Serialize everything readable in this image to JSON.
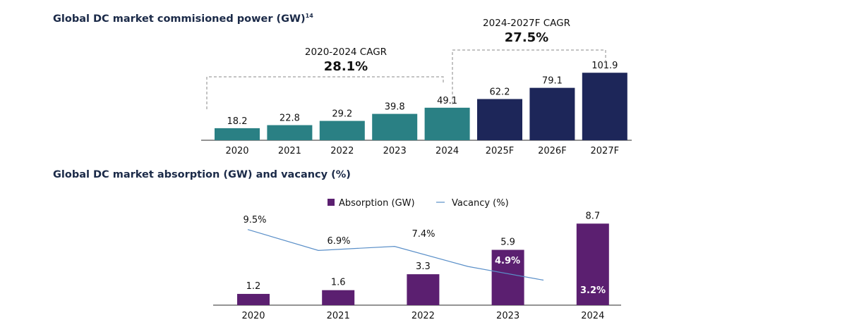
{
  "colors": {
    "actual": "#2a8084",
    "forecast": "#1d2659",
    "absorption": "#5b1f70",
    "vacancy": "#5a8fc8",
    "title": "#1b2a48"
  },
  "chart_data": [
    {
      "type": "bar",
      "title": "Global DC market commisioned power (GW)",
      "title_superscript": "14",
      "categories": [
        "2020",
        "2021",
        "2022",
        "2023",
        "2024",
        "2025F",
        "2026F",
        "2027F"
      ],
      "values": [
        18.2,
        22.8,
        29.2,
        39.8,
        49.1,
        62.2,
        79.1,
        101.9
      ],
      "labels": [
        "18.2",
        "22.8",
        "29.2",
        "39.8",
        "49.1",
        "62.2",
        "79.1",
        "101.9"
      ],
      "forecast_from_index": 5,
      "annotations": [
        {
          "label": "2020-2024 CAGR",
          "value": "28.1%",
          "from": "2020",
          "to": "2024"
        },
        {
          "label": "2024-2027F CAGR",
          "value": "27.5%",
          "from": "2024",
          "to": "2027F"
        }
      ],
      "grid": false
    },
    {
      "type": "bar+line",
      "title": "Global DC market absorption (GW) and vacancy (%)",
      "categories": [
        "2020",
        "2021",
        "2022",
        "2023",
        "2024"
      ],
      "legend": {
        "placement": "top",
        "entries": [
          "Absorption (GW)",
          "Vacancy (%)"
        ]
      },
      "series": [
        {
          "name": "Absorption (GW)",
          "type": "bar",
          "values": [
            1.2,
            1.6,
            3.3,
            5.9,
            8.7
          ],
          "labels": [
            "1.2",
            "1.6",
            "3.3",
            "5.9",
            "8.7"
          ]
        },
        {
          "name": "Vacancy (%)",
          "type": "line",
          "values": [
            9.5,
            6.9,
            7.4,
            4.9,
            3.2
          ],
          "labels": [
            "9.5%",
            "6.9%",
            "7.4%",
            "4.9%",
            "3.2%"
          ]
        }
      ],
      "grid": false
    }
  ]
}
